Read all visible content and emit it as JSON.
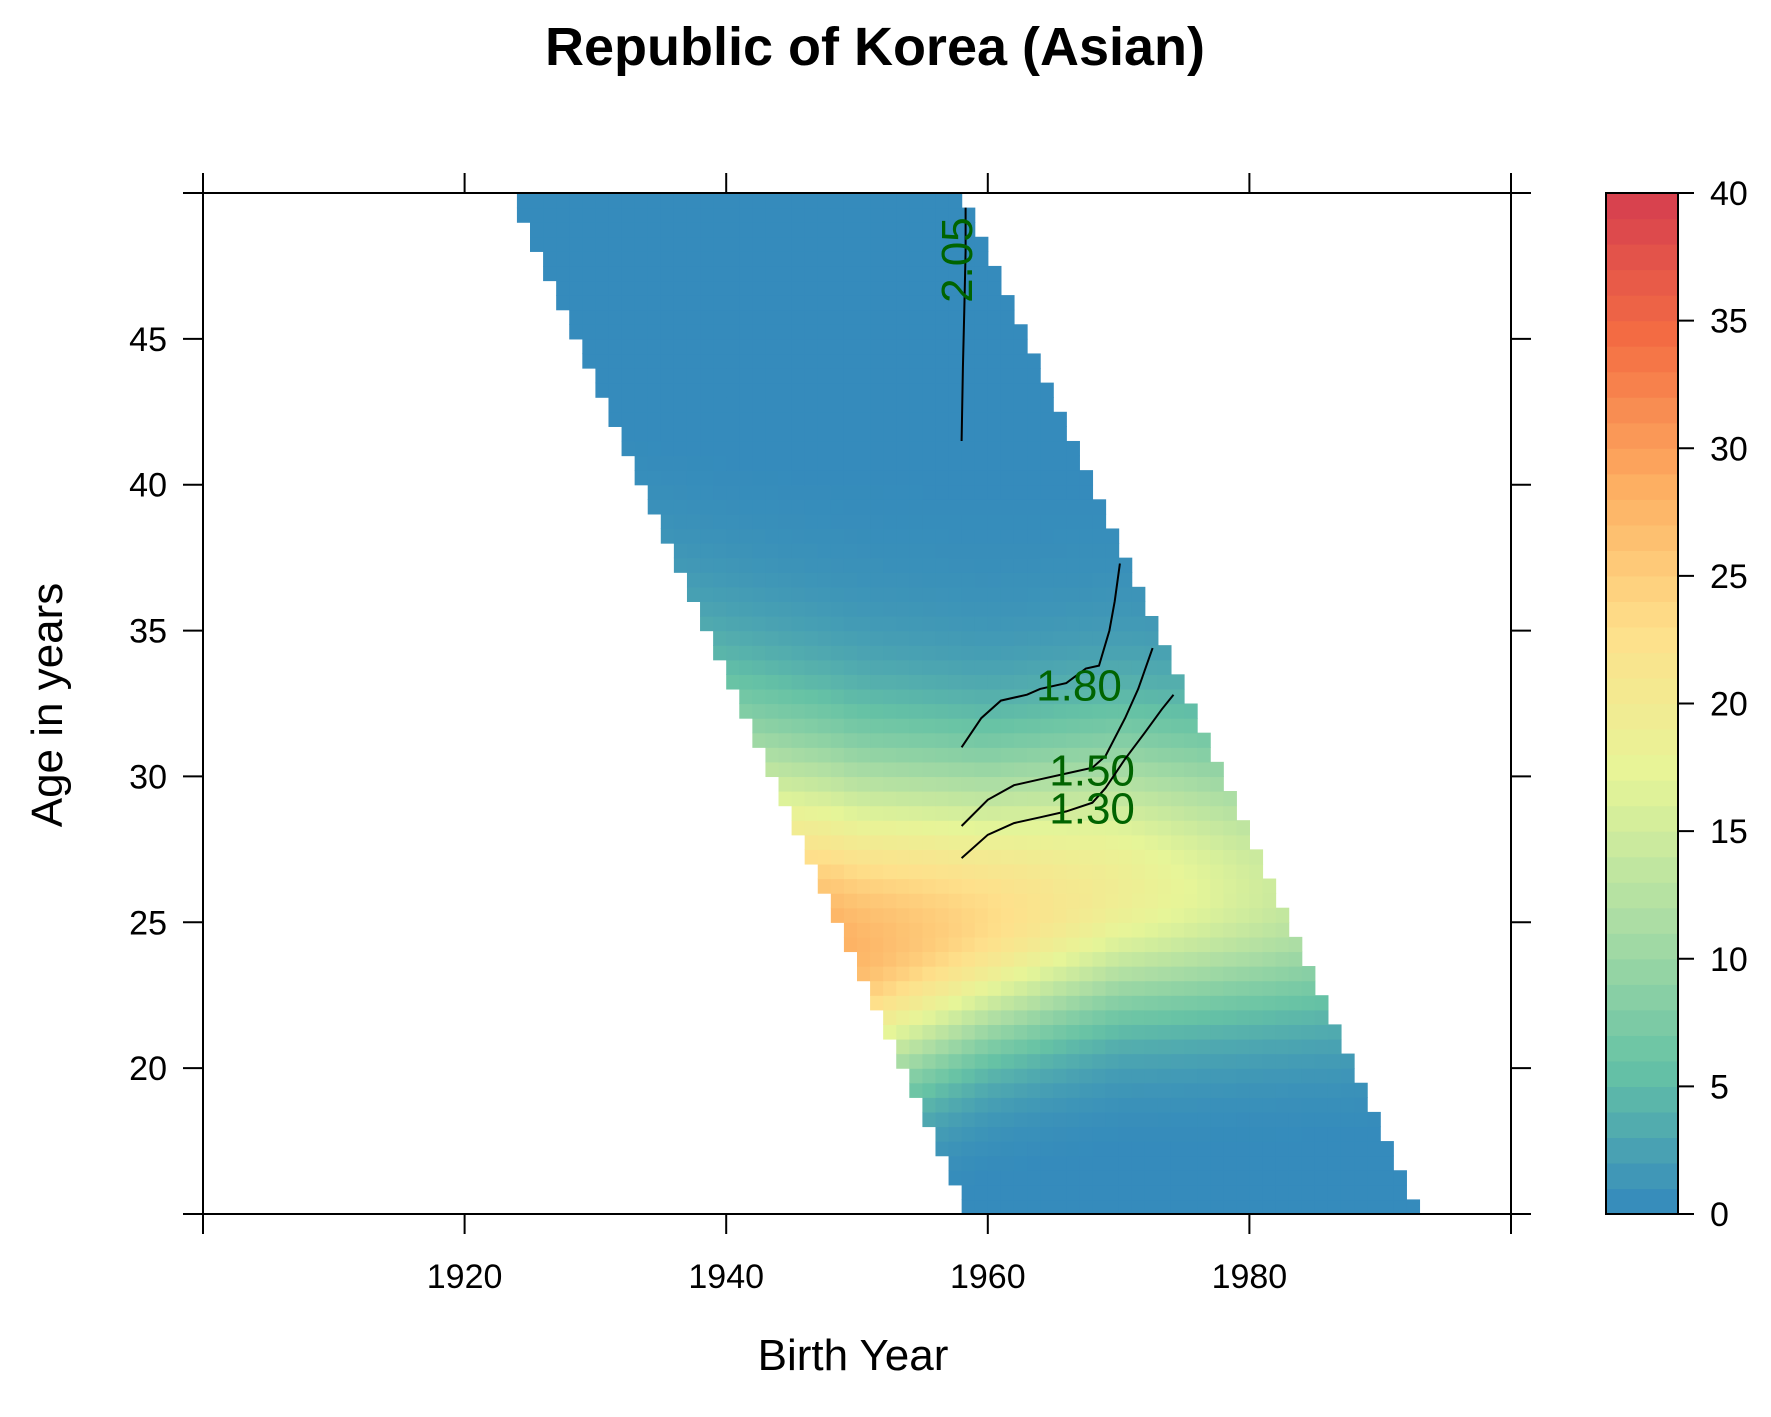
{
  "chart_data": {
    "type": "heatmap",
    "title": "Republic of Korea (Asian)",
    "xlabel": "Birth Year",
    "ylabel": "Age in years",
    "xlim": [
      1900,
      2000
    ],
    "ylim": [
      15,
      50
    ],
    "x_ticks": [
      1920,
      1940,
      1960,
      1980
    ],
    "y_ticks": [
      20,
      25,
      30,
      35,
      40,
      45
    ],
    "colorbar": {
      "range": [
        0,
        40
      ],
      "ticks": [
        0,
        5,
        10,
        15,
        20,
        25,
        30,
        35,
        40
      ],
      "colors": [
        "#3288bd",
        "#66c2a5",
        "#abdda4",
        "#e6f598",
        "#fee08b",
        "#fdae61",
        "#f46d43",
        "#d53e4f"
      ]
    },
    "data_region": {
      "ages": [
        15,
        50
      ],
      "observation_period": [
        1973,
        2007
      ]
    },
    "heatmap_note_peak": "highest rates near age 24-28 for cohorts 1945-1955",
    "contours": [
      {
        "label": "2.05",
        "points": [
          [
            1958.0,
            41.5
          ],
          [
            1958.1,
            44
          ],
          [
            1958.2,
            46
          ],
          [
            1958.3,
            48
          ],
          [
            1958.3,
            49.5
          ]
        ]
      },
      {
        "label": "1.80",
        "points": [
          [
            1958.0,
            31
          ],
          [
            1959.5,
            32
          ],
          [
            1961,
            32.6
          ],
          [
            1963,
            32.8
          ],
          [
            1964,
            33
          ],
          [
            1966,
            33.2
          ],
          [
            1967.5,
            33.7
          ],
          [
            1968.5,
            33.8
          ],
          [
            1969.3,
            35
          ],
          [
            1969.7,
            36
          ],
          [
            1970.1,
            37.3
          ]
        ]
      },
      {
        "label": "1.50",
        "points": [
          [
            1958.0,
            28.3
          ],
          [
            1960,
            29.2
          ],
          [
            1962,
            29.7
          ],
          [
            1964,
            29.9
          ],
          [
            1966,
            30.1
          ],
          [
            1968,
            30.3
          ],
          [
            1969,
            30.7
          ],
          [
            1970.5,
            32
          ],
          [
            1971.5,
            33
          ],
          [
            1972.6,
            34.4
          ]
        ]
      },
      {
        "label": "1.30",
        "points": [
          [
            1958.0,
            27.2
          ],
          [
            1960,
            28
          ],
          [
            1962,
            28.4
          ],
          [
            1964,
            28.6
          ],
          [
            1966,
            28.8
          ],
          [
            1968,
            29.1
          ],
          [
            1969,
            29.6
          ],
          [
            1970.5,
            30.6
          ],
          [
            1972,
            31.5
          ],
          [
            1973.3,
            32.3
          ],
          [
            1974.2,
            32.8
          ]
        ]
      }
    ]
  }
}
